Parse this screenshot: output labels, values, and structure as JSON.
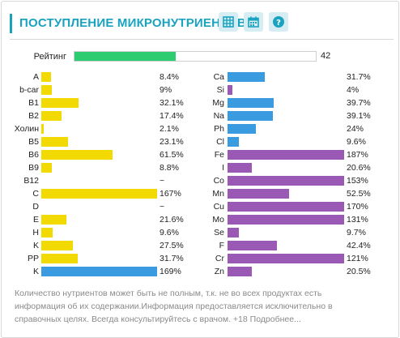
{
  "header": {
    "title": "ПОСТУПЛЕНИЕ МИКРОНУТРИЕНТОВ",
    "buttons": [
      {
        "name": "table-view-button",
        "icon": "table-icon"
      },
      {
        "name": "calendar-button",
        "icon": "calendar-icon"
      },
      {
        "name": "help-button",
        "icon": "question-circle-icon"
      }
    ]
  },
  "rating": {
    "label": "Рейтинг",
    "value": "42",
    "fraction": 0.42,
    "color": "#2ecc71"
  },
  "colors": {
    "yellow": "#f2da00",
    "blue": "#3a9be0",
    "purple": "#9b59b6",
    "teal": "#1aa3bf"
  },
  "left_column": [
    {
      "label": "A",
      "value": "8.4%",
      "fraction": 0.084,
      "color": "#f2da00"
    },
    {
      "label": "b-car",
      "value": "9%",
      "fraction": 0.09,
      "color": "#f2da00"
    },
    {
      "label": "B1",
      "value": "32.1%",
      "fraction": 0.321,
      "color": "#f2da00"
    },
    {
      "label": "B2",
      "value": "17.4%",
      "fraction": 0.174,
      "color": "#f2da00"
    },
    {
      "label": "Холин",
      "value": "2.1%",
      "fraction": 0.021,
      "color": "#f2da00"
    },
    {
      "label": "B5",
      "value": "23.1%",
      "fraction": 0.231,
      "color": "#f2da00"
    },
    {
      "label": "B6",
      "value": "61.5%",
      "fraction": 0.615,
      "color": "#f2da00"
    },
    {
      "label": "B9",
      "value": "8.8%",
      "fraction": 0.088,
      "color": "#f2da00"
    },
    {
      "label": "B12",
      "value": "~",
      "fraction": 0,
      "color": "#f2da00"
    },
    {
      "label": "C",
      "value": "167%",
      "fraction": 1.0,
      "color": "#f2da00"
    },
    {
      "label": "D",
      "value": "~",
      "fraction": 0,
      "color": "#f2da00"
    },
    {
      "label": "E",
      "value": "21.6%",
      "fraction": 0.216,
      "color": "#f2da00"
    },
    {
      "label": "H",
      "value": "9.6%",
      "fraction": 0.096,
      "color": "#f2da00"
    },
    {
      "label": "K",
      "value": "27.5%",
      "fraction": 0.275,
      "color": "#f2da00"
    },
    {
      "label": "PP",
      "value": "31.7%",
      "fraction": 0.317,
      "color": "#f2da00"
    },
    {
      "label": "K",
      "value": "169%",
      "fraction": 1.0,
      "color": "#3a9be0"
    }
  ],
  "right_column": [
    {
      "label": "Ca",
      "value": "31.7%",
      "fraction": 0.317,
      "color": "#3a9be0"
    },
    {
      "label": "Si",
      "value": "4%",
      "fraction": 0.04,
      "color": "#9b59b6"
    },
    {
      "label": "Mg",
      "value": "39.7%",
      "fraction": 0.397,
      "color": "#3a9be0"
    },
    {
      "label": "Na",
      "value": "39.1%",
      "fraction": 0.391,
      "color": "#3a9be0"
    },
    {
      "label": "Ph",
      "value": "24%",
      "fraction": 0.24,
      "color": "#3a9be0"
    },
    {
      "label": "Cl",
      "value": "9.6%",
      "fraction": 0.096,
      "color": "#3a9be0"
    },
    {
      "label": "Fe",
      "value": "187%",
      "fraction": 1.0,
      "color": "#9b59b6"
    },
    {
      "label": "I",
      "value": "20.6%",
      "fraction": 0.206,
      "color": "#9b59b6"
    },
    {
      "label": "Co",
      "value": "153%",
      "fraction": 1.0,
      "color": "#9b59b6"
    },
    {
      "label": "Mn",
      "value": "52.5%",
      "fraction": 0.525,
      "color": "#9b59b6"
    },
    {
      "label": "Cu",
      "value": "170%",
      "fraction": 1.0,
      "color": "#9b59b6"
    },
    {
      "label": "Mo",
      "value": "131%",
      "fraction": 1.0,
      "color": "#9b59b6"
    },
    {
      "label": "Se",
      "value": "9.7%",
      "fraction": 0.097,
      "color": "#9b59b6"
    },
    {
      "label": "F",
      "value": "42.4%",
      "fraction": 0.424,
      "color": "#9b59b6"
    },
    {
      "label": "Cr",
      "value": "121%",
      "fraction": 1.0,
      "color": "#9b59b6"
    },
    {
      "label": "Zn",
      "value": "20.5%",
      "fraction": 0.205,
      "color": "#9b59b6"
    }
  ],
  "note": "Количество нутриентов может быть не полным, т.к. не во всех продуктах есть информация об их содержании.Информация предоставляется исключительно в справочных целях. Всегда консультируйтесь с врачом. +18 Подробнее..."
}
